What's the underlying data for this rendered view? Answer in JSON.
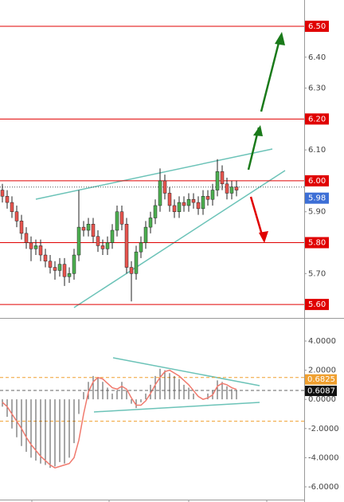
{
  "chart_data": [
    {
      "type": "candlestick",
      "open": [
        5.97,
        5.95,
        5.93,
        5.9,
        5.87,
        5.83,
        5.8,
        5.78,
        5.79,
        5.76,
        5.74,
        5.72,
        5.71,
        5.73,
        5.69,
        5.7,
        5.76,
        5.85,
        5.84,
        5.86,
        5.82,
        5.79,
        5.78,
        5.8,
        5.84,
        5.9,
        5.86,
        5.72,
        5.7,
        5.77,
        5.8,
        5.85,
        5.88,
        5.92,
        6.0,
        5.96,
        5.92,
        5.9,
        5.93,
        5.92,
        5.94,
        5.93,
        5.91,
        5.95,
        5.94,
        5.97,
        6.03,
        5.99,
        5.96,
        5.98
      ],
      "high": [
        5.99,
        5.97,
        5.95,
        5.92,
        5.89,
        5.85,
        5.82,
        5.81,
        5.81,
        5.78,
        5.76,
        5.74,
        5.75,
        5.75,
        5.72,
        5.78,
        5.97,
        5.87,
        5.88,
        5.88,
        5.84,
        5.81,
        5.82,
        5.86,
        5.92,
        5.92,
        5.88,
        5.74,
        5.79,
        5.82,
        5.87,
        5.9,
        5.94,
        6.04,
        6.02,
        5.98,
        5.94,
        5.95,
        5.95,
        5.96,
        5.96,
        5.95,
        5.97,
        5.97,
        5.99,
        6.07,
        6.05,
        6.01,
        6.0,
        6.0
      ],
      "low": [
        5.93,
        5.91,
        5.88,
        5.85,
        5.81,
        5.78,
        5.74,
        5.76,
        5.74,
        5.72,
        5.7,
        5.68,
        5.69,
        5.66,
        5.67,
        5.68,
        5.74,
        5.82,
        5.82,
        5.8,
        5.77,
        5.76,
        5.76,
        5.78,
        5.82,
        5.84,
        5.7,
        5.61,
        5.68,
        5.75,
        5.78,
        5.83,
        5.86,
        5.9,
        5.94,
        5.9,
        5.88,
        5.88,
        5.9,
        5.9,
        5.91,
        5.89,
        5.89,
        5.92,
        5.92,
        5.95,
        5.97,
        5.94,
        5.94,
        5.95
      ],
      "close": [
        5.95,
        5.93,
        5.9,
        5.87,
        5.83,
        5.8,
        5.78,
        5.79,
        5.76,
        5.74,
        5.72,
        5.71,
        5.73,
        5.69,
        5.7,
        5.76,
        5.85,
        5.84,
        5.86,
        5.82,
        5.79,
        5.78,
        5.8,
        5.84,
        5.9,
        5.86,
        5.72,
        5.7,
        5.77,
        5.8,
        5.85,
        5.88,
        5.92,
        6.0,
        5.96,
        5.92,
        5.9,
        5.93,
        5.92,
        5.94,
        5.93,
        5.91,
        5.95,
        5.94,
        5.97,
        6.03,
        5.99,
        5.96,
        5.98,
        5.97
      ],
      "up_color": "#4caf50",
      "down_color": "#e8544e",
      "level_color": "#e00000",
      "last_color": "#3d6fd6",
      "ylim": [
        5.559,
        6.585
      ],
      "yticks": [
        {
          "value": 6.5,
          "label": "6.50"
        },
        {
          "value": 6.4,
          "label": "6.40"
        },
        {
          "value": 6.3,
          "label": "6.30"
        },
        {
          "value": 6.2,
          "label": "6.20"
        },
        {
          "value": 6.1,
          "label": "6.10"
        },
        {
          "value": 6.0,
          "label": "6.00"
        },
        {
          "value": 5.9,
          "label": "5.90"
        },
        {
          "value": 5.8,
          "label": "5.80"
        },
        {
          "value": 5.7,
          "label": "5.70"
        },
        {
          "value": 5.6,
          "label": "5.60"
        }
      ],
      "levels": [
        6.5,
        6.2,
        6.0,
        5.8,
        5.6
      ],
      "last_price": 5.98
    },
    {
      "type": "macd",
      "histogram": [
        -0.5,
        -1.2,
        -2.0,
        -2.6,
        -3.2,
        -3.6,
        -4.0,
        -4.2,
        -4.4,
        -4.5,
        -4.7,
        -4.6,
        -4.3,
        -4.4,
        -4.0,
        -3.0,
        -1.0,
        0.5,
        1.2,
        1.6,
        1.5,
        1.2,
        0.8,
        0.4,
        0.6,
        1.2,
        0.6,
        -0.3,
        -0.6,
        -0.2,
        0.4,
        1.0,
        1.6,
        2.1,
        2.0,
        1.8,
        1.6,
        1.4,
        1.0,
        0.8,
        0.4,
        0.0,
        0.0,
        0.4,
        0.6,
        1.3,
        1.2,
        0.9,
        0.7,
        0.6087
      ],
      "line": [
        -0.2,
        -0.5,
        -1.0,
        -1.5,
        -2.0,
        -2.6,
        -3.1,
        -3.5,
        -3.9,
        -4.2,
        -4.5,
        -4.7,
        -4.6,
        -4.5,
        -4.4,
        -4.0,
        -2.8,
        -1.0,
        0.5,
        1.2,
        1.5,
        1.4,
        1.1,
        0.8,
        0.7,
        0.9,
        0.7,
        0.1,
        -0.4,
        -0.4,
        -0.1,
        0.4,
        1.0,
        1.5,
        1.9,
        2.0,
        1.8,
        1.6,
        1.3,
        1.0,
        0.6,
        0.2,
        0.0,
        0.1,
        0.3,
        0.9,
        1.1,
        1.0,
        0.8,
        0.6825
      ],
      "histogram_color": "#222222",
      "line_color": "#f07a6e",
      "level_color": "#f0a030",
      "levels": [
        1.5,
        -1.5
      ],
      "ylim": [
        -7.04,
        5.53
      ],
      "yticks": [
        {
          "value": 4,
          "label": "4.0000"
        },
        {
          "value": 2,
          "label": "2.0000"
        },
        {
          "value": 0,
          "label": "0.0000"
        },
        {
          "value": -2,
          "label": "-2.0000"
        },
        {
          "value": -4,
          "label": "-4.0000"
        },
        {
          "value": -6,
          "label": "-6.0000"
        }
      ]
    }
  ]
}
